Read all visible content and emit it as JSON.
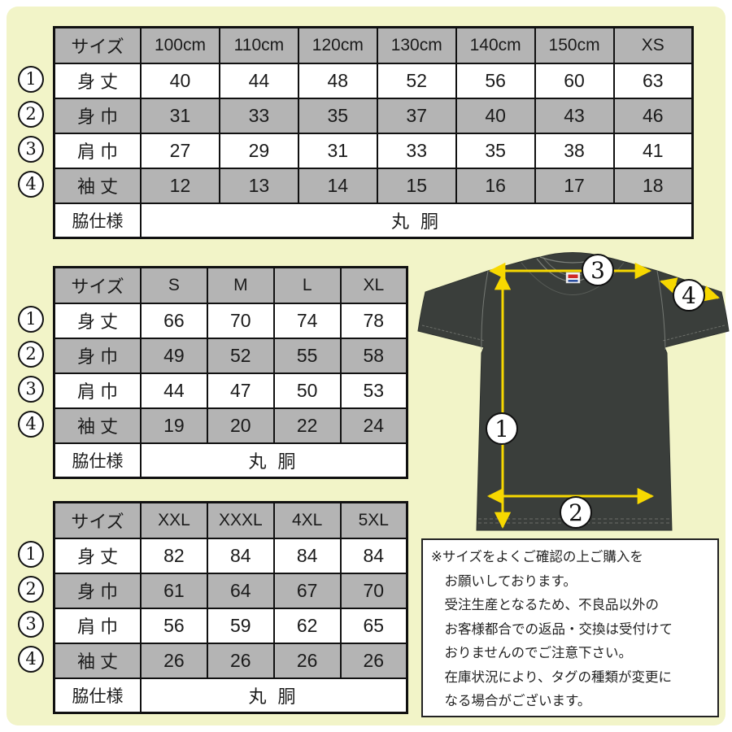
{
  "colors": {
    "panel_bg": "#f2f4c8",
    "cell_gray": "#b4b4b4",
    "shirt": "#3a3e3b",
    "arrow": "#f7d800",
    "note_bg": "#ffffff"
  },
  "tables": [
    {
      "corner_label": "サイズ",
      "columns": [
        "100cm",
        "110cm",
        "120cm",
        "130cm",
        "140cm",
        "150cm",
        "XS"
      ],
      "rows": [
        {
          "marker": "1",
          "label": "身 丈",
          "values": [
            "40",
            "44",
            "48",
            "52",
            "56",
            "60",
            "63"
          ]
        },
        {
          "marker": "2",
          "label": "身 巾",
          "values": [
            "31",
            "33",
            "35",
            "37",
            "40",
            "43",
            "46"
          ]
        },
        {
          "marker": "3",
          "label": "肩 巾",
          "values": [
            "27",
            "29",
            "31",
            "33",
            "35",
            "38",
            "41"
          ]
        },
        {
          "marker": "4",
          "label": "袖 丈",
          "values": [
            "12",
            "13",
            "14",
            "15",
            "16",
            "17",
            "18"
          ]
        }
      ],
      "footer": {
        "label": "脇仕様",
        "value": "丸 胴"
      }
    },
    {
      "corner_label": "サイズ",
      "columns": [
        "S",
        "M",
        "L",
        "XL"
      ],
      "rows": [
        {
          "marker": "1",
          "label": "身 丈",
          "values": [
            "66",
            "70",
            "74",
            "78"
          ]
        },
        {
          "marker": "2",
          "label": "身 巾",
          "values": [
            "49",
            "52",
            "55",
            "58"
          ]
        },
        {
          "marker": "3",
          "label": "肩 巾",
          "values": [
            "44",
            "47",
            "50",
            "53"
          ]
        },
        {
          "marker": "4",
          "label": "袖 丈",
          "values": [
            "19",
            "20",
            "22",
            "24"
          ]
        }
      ],
      "footer": {
        "label": "脇仕様",
        "value": "丸 胴"
      }
    },
    {
      "corner_label": "サイズ",
      "columns": [
        "XXL",
        "XXXL",
        "4XL",
        "5XL"
      ],
      "rows": [
        {
          "marker": "1",
          "label": "身 丈",
          "values": [
            "82",
            "84",
            "84",
            "84"
          ]
        },
        {
          "marker": "2",
          "label": "身 巾",
          "values": [
            "61",
            "64",
            "67",
            "70"
          ]
        },
        {
          "marker": "3",
          "label": "肩 巾",
          "values": [
            "56",
            "59",
            "62",
            "65"
          ]
        },
        {
          "marker": "4",
          "label": "袖 丈",
          "values": [
            "26",
            "26",
            "26",
            "26"
          ]
        }
      ],
      "footer": {
        "label": "脇仕様",
        "value": "丸 胴"
      }
    }
  ],
  "diagram": {
    "markers": [
      "1",
      "2",
      "3",
      "4"
    ]
  },
  "note": {
    "lines": [
      "※サイズをよくご確認の上ご購入を",
      "お願いしております。",
      "受注生産となるため、不良品以外の",
      "お客様都合での返品・交換は受付けて",
      "おりませんのでご注意下さい。",
      "在庫状況により、タグの種類が変更に",
      "なる場合がございます。"
    ]
  }
}
